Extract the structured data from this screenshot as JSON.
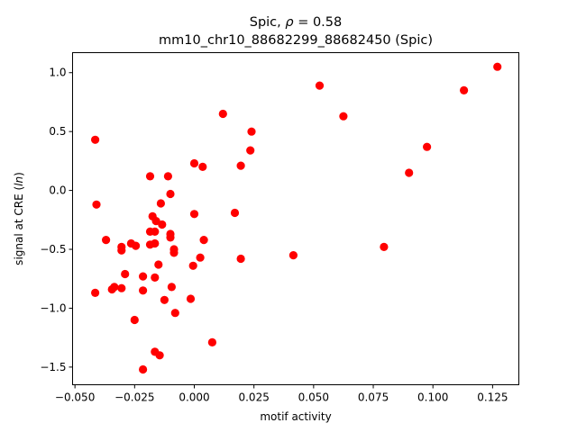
{
  "chart_data": {
    "type": "scatter",
    "title_line1_text": "Spic, ",
    "title_line1_rho": "ρ",
    "title_line1_value": " = 0.58",
    "title_line2": "mm10_chr10_88682299_88682450 (Spic)",
    "xlabel": "motif activity",
    "ylabel_prefix": "signal at CRE (",
    "ylabel_italic": "ln",
    "ylabel_suffix": ")",
    "xlim": [
      -0.051,
      0.136
    ],
    "ylim": [
      -1.65,
      1.17
    ],
    "xticks": [
      {
        "value": -0.05,
        "label": "−0.050"
      },
      {
        "value": -0.025,
        "label": "−0.025"
      },
      {
        "value": 0.0,
        "label": "0.000"
      },
      {
        "value": 0.025,
        "label": "0.025"
      },
      {
        "value": 0.05,
        "label": "0.050"
      },
      {
        "value": 0.075,
        "label": "0.075"
      },
      {
        "value": 0.1,
        "label": "0.100"
      },
      {
        "value": 0.125,
        "label": "0.125"
      }
    ],
    "yticks": [
      {
        "value": -1.5,
        "label": "−1.5"
      },
      {
        "value": -1.0,
        "label": "−1.0"
      },
      {
        "value": -0.5,
        "label": "−0.5"
      },
      {
        "value": 0.0,
        "label": "0.0"
      },
      {
        "value": 0.5,
        "label": "0.5"
      },
      {
        "value": 1.0,
        "label": "1.0"
      }
    ],
    "grid": false,
    "marker_color": "#ff0000",
    "points": [
      {
        "x": -0.0415,
        "y": 0.43
      },
      {
        "x": -0.041,
        "y": -0.12
      },
      {
        "x": -0.0415,
        "y": -0.87
      },
      {
        "x": -0.037,
        "y": -0.42
      },
      {
        "x": -0.0345,
        "y": -0.84
      },
      {
        "x": -0.0335,
        "y": -0.82
      },
      {
        "x": -0.0305,
        "y": -0.48
      },
      {
        "x": -0.0305,
        "y": -0.51
      },
      {
        "x": -0.0305,
        "y": -0.83
      },
      {
        "x": -0.029,
        "y": -0.71
      },
      {
        "x": -0.0265,
        "y": -0.45
      },
      {
        "x": -0.0245,
        "y": -0.47
      },
      {
        "x": -0.025,
        "y": -1.1
      },
      {
        "x": -0.0215,
        "y": -0.73
      },
      {
        "x": -0.0215,
        "y": -0.85
      },
      {
        "x": -0.0215,
        "y": -1.52
      },
      {
        "x": -0.0185,
        "y": 0.12
      },
      {
        "x": -0.0185,
        "y": -0.35
      },
      {
        "x": -0.0185,
        "y": -0.46
      },
      {
        "x": -0.0175,
        "y": -0.22
      },
      {
        "x": -0.0165,
        "y": -0.35
      },
      {
        "x": -0.0165,
        "y": -0.45
      },
      {
        "x": -0.0165,
        "y": -0.74
      },
      {
        "x": -0.016,
        "y": -0.26
      },
      {
        "x": -0.0165,
        "y": -1.37
      },
      {
        "x": -0.015,
        "y": -0.63
      },
      {
        "x": -0.0145,
        "y": -1.4
      },
      {
        "x": -0.014,
        "y": -0.11
      },
      {
        "x": -0.0135,
        "y": -0.29
      },
      {
        "x": -0.0125,
        "y": -0.93
      },
      {
        "x": -0.011,
        "y": 0.12
      },
      {
        "x": -0.01,
        "y": -0.03
      },
      {
        "x": -0.01,
        "y": -0.37
      },
      {
        "x": -0.01,
        "y": -0.4
      },
      {
        "x": -0.0095,
        "y": -0.82
      },
      {
        "x": -0.0085,
        "y": -0.5
      },
      {
        "x": -0.0085,
        "y": -0.53
      },
      {
        "x": -0.008,
        "y": -1.04
      },
      {
        "x": -0.0015,
        "y": -0.92
      },
      {
        "x": -0.0005,
        "y": -0.64
      },
      {
        "x": 0.0,
        "y": 0.23
      },
      {
        "x": 0.0,
        "y": -0.2
      },
      {
        "x": 0.0025,
        "y": -0.57
      },
      {
        "x": 0.0035,
        "y": 0.2
      },
      {
        "x": 0.004,
        "y": -0.42
      },
      {
        "x": 0.0075,
        "y": -1.29
      },
      {
        "x": 0.012,
        "y": 0.65
      },
      {
        "x": 0.017,
        "y": -0.19
      },
      {
        "x": 0.0195,
        "y": 0.21
      },
      {
        "x": 0.0195,
        "y": -0.58
      },
      {
        "x": 0.0235,
        "y": 0.34
      },
      {
        "x": 0.024,
        "y": 0.5
      },
      {
        "x": 0.0415,
        "y": -0.55
      },
      {
        "x": 0.0525,
        "y": 0.89
      },
      {
        "x": 0.0625,
        "y": 0.63
      },
      {
        "x": 0.0795,
        "y": -0.48
      },
      {
        "x": 0.09,
        "y": 0.15
      },
      {
        "x": 0.0975,
        "y": 0.37
      },
      {
        "x": 0.113,
        "y": 0.85
      },
      {
        "x": 0.127,
        "y": 1.05
      }
    ]
  }
}
